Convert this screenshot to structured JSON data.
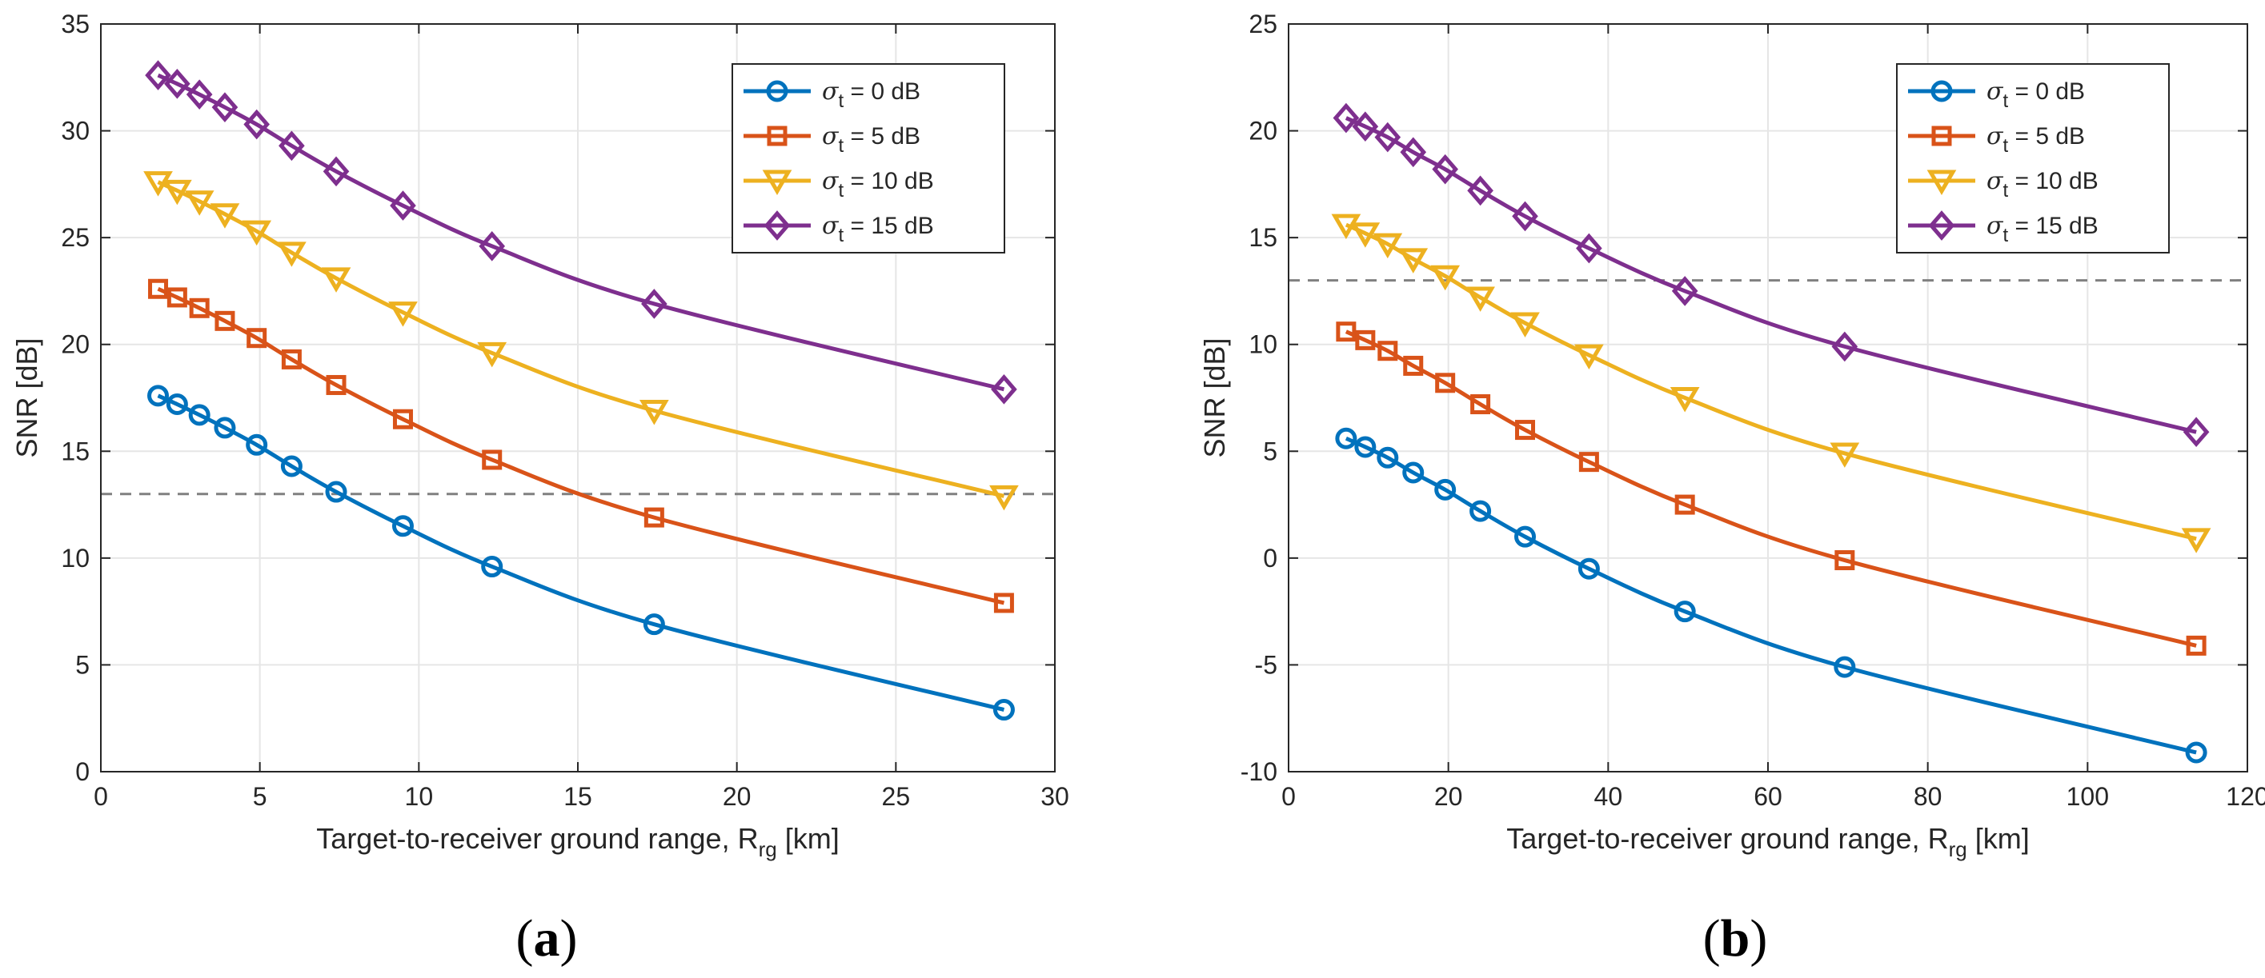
{
  "colors": {
    "s0": "#0072BD",
    "s5": "#D95319",
    "s10": "#EDB120",
    "s15": "#7E2F8E",
    "threshold": "#808080",
    "grid": "#e6e6e6",
    "axis": "#262626"
  },
  "legend_labels": {
    "s0": {
      "sym": "σ",
      "sub": "t",
      "rest": " = 0 dB"
    },
    "s5": {
      "sym": "σ",
      "sub": "t",
      "rest": " = 5 dB"
    },
    "s10": {
      "sym": "σ",
      "sub": "t",
      "rest": " = 10 dB"
    },
    "s15": {
      "sym": "σ",
      "sub": "t",
      "rest": " = 15 dB"
    }
  },
  "chart_data": [
    {
      "type": "line",
      "panel_label": "(a)",
      "caption": {
        "open": "(",
        "letter": "a",
        "close": ")"
      },
      "xlabel": {
        "main": "Target-to-receiver ground range, R",
        "sub": "rg",
        "unit": " [km]"
      },
      "ylabel": "SNR [dB]",
      "xlim": [
        0,
        30
      ],
      "ylim": [
        0,
        35
      ],
      "xticks": [
        0,
        5,
        10,
        15,
        20,
        25,
        30
      ],
      "yticks": [
        0,
        5,
        10,
        15,
        20,
        25,
        30,
        35
      ],
      "grid": true,
      "legend_position": "top-right",
      "threshold": 13,
      "x": [
        1.8,
        2.4,
        3.1,
        3.9,
        4.9,
        6.0,
        7.4,
        9.5,
        12.3,
        17.4,
        28.4
      ],
      "series": [
        {
          "name": "s0",
          "marker": "circle",
          "values": [
            17.6,
            17.2,
            16.7,
            16.1,
            15.3,
            14.3,
            13.1,
            11.5,
            9.6,
            6.9,
            2.9
          ]
        },
        {
          "name": "s5",
          "marker": "square",
          "values": [
            22.6,
            22.2,
            21.7,
            21.1,
            20.3,
            19.3,
            18.1,
            16.5,
            14.6,
            11.9,
            7.9
          ]
        },
        {
          "name": "s10",
          "marker": "triangle-down",
          "values": [
            27.6,
            27.2,
            26.7,
            26.1,
            25.3,
            24.3,
            23.1,
            21.5,
            19.6,
            16.9,
            12.9
          ]
        },
        {
          "name": "s15",
          "marker": "diamond",
          "values": [
            32.6,
            32.2,
            31.7,
            31.1,
            30.3,
            29.3,
            28.1,
            26.5,
            24.6,
            21.9,
            17.9
          ]
        }
      ]
    },
    {
      "type": "line",
      "panel_label": "(b)",
      "caption": {
        "open": "(",
        "letter": "b",
        "close": ")"
      },
      "xlabel": {
        "main": "Target-to-receiver ground range, R",
        "sub": "rg",
        "unit": " [km]"
      },
      "ylabel": "SNR [dB]",
      "xlim": [
        0,
        120
      ],
      "ylim": [
        -10,
        25
      ],
      "xticks": [
        0,
        20,
        40,
        60,
        80,
        100,
        120
      ],
      "yticks": [
        -10,
        -5,
        0,
        5,
        10,
        15,
        20,
        25
      ],
      "grid": true,
      "legend_position": "top-right",
      "threshold": 13,
      "x": [
        7.2,
        9.6,
        12.4,
        15.6,
        19.6,
        24.0,
        29.6,
        37.6,
        49.6,
        69.6,
        113.6
      ],
      "series": [
        {
          "name": "s0",
          "marker": "circle",
          "values": [
            5.6,
            5.2,
            4.7,
            4.0,
            3.2,
            2.2,
            1.0,
            -0.5,
            -2.5,
            -5.1,
            -9.1
          ]
        },
        {
          "name": "s5",
          "marker": "square",
          "values": [
            10.6,
            10.2,
            9.7,
            9.0,
            8.2,
            7.2,
            6.0,
            4.5,
            2.5,
            -0.1,
            -4.1
          ]
        },
        {
          "name": "s10",
          "marker": "triangle-down",
          "values": [
            15.6,
            15.2,
            14.7,
            14.0,
            13.2,
            12.2,
            11.0,
            9.5,
            7.5,
            4.9,
            0.9
          ]
        },
        {
          "name": "s15",
          "marker": "diamond",
          "values": [
            20.6,
            20.2,
            19.7,
            19.0,
            18.2,
            17.2,
            16.0,
            14.5,
            12.5,
            9.9,
            5.9
          ]
        }
      ]
    }
  ]
}
